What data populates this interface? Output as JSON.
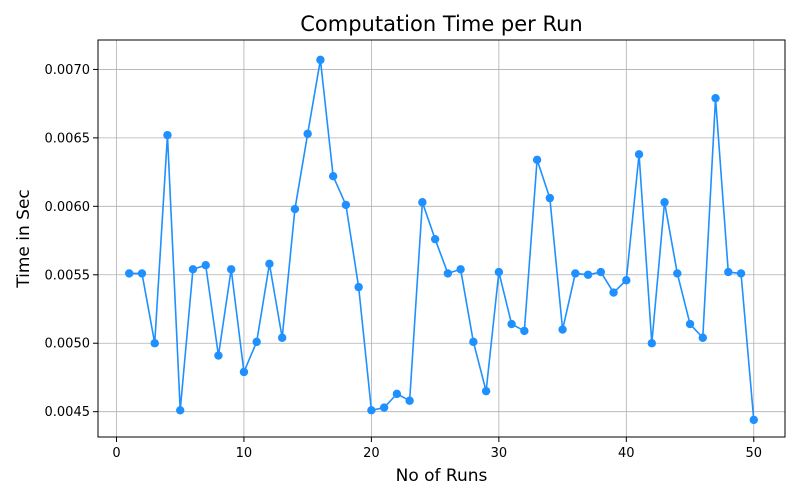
{
  "chart_data": {
    "type": "line",
    "title": "Computation Time per Run",
    "xlabel": "No of Runs",
    "ylabel": "Time in Sec",
    "xlim": [
      -1.45,
      52.45
    ],
    "ylim": [
      0.004315,
      0.007215
    ],
    "xticks": [
      0,
      10,
      20,
      30,
      40,
      50
    ],
    "yticks": [
      0.0045,
      0.005,
      0.0055,
      0.006,
      0.0065,
      0.007
    ],
    "ytick_labels": [
      "0.0045",
      "0.0050",
      "0.0055",
      "0.0060",
      "0.0065",
      "0.0070"
    ],
    "grid": true,
    "marker": "circle",
    "colors": {
      "line": "#1e90ff",
      "grid": "#b0b0b0",
      "axis": "#000000"
    },
    "series": [
      {
        "x": [
          1,
          2,
          3,
          4,
          5,
          6,
          7,
          8,
          9,
          10,
          11,
          12,
          13,
          14,
          15,
          16,
          17,
          18,
          19,
          20,
          21,
          22,
          23,
          24,
          25,
          26,
          27,
          28,
          29,
          30,
          31,
          32,
          33,
          34,
          35,
          36,
          37,
          38,
          39,
          40,
          41,
          42,
          43,
          44,
          45,
          46,
          47,
          48,
          49,
          50
        ],
        "values": [
          0.00551,
          0.00551,
          0.005,
          0.00652,
          0.00451,
          0.00554,
          0.00557,
          0.00491,
          0.00554,
          0.00479,
          0.00501,
          0.00558,
          0.00504,
          0.00598,
          0.00653,
          0.00707,
          0.00622,
          0.00601,
          0.00541,
          0.00451,
          0.00453,
          0.00463,
          0.00458,
          0.00603,
          0.00576,
          0.00551,
          0.00554,
          0.00501,
          0.00465,
          0.00552,
          0.00514,
          0.00509,
          0.00634,
          0.00606,
          0.0051,
          0.00551,
          0.0055,
          0.00552,
          0.00537,
          0.00546,
          0.00638,
          0.005,
          0.00603,
          0.00551,
          0.00514,
          0.00504,
          0.00679,
          0.00552,
          0.00551,
          0.00444
        ]
      }
    ]
  }
}
